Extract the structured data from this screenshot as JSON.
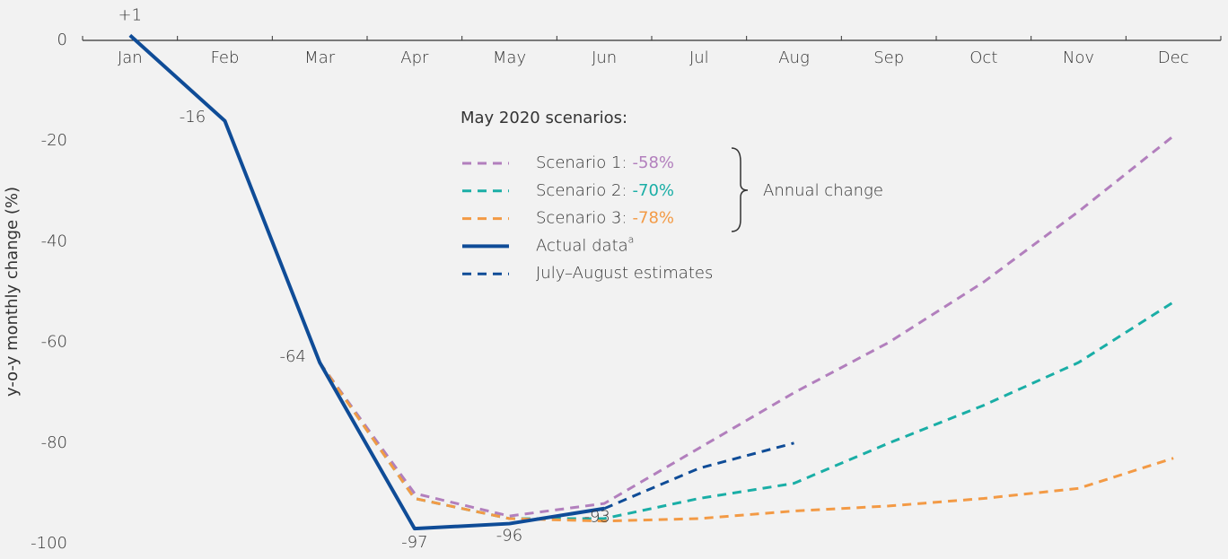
{
  "chart_data": {
    "type": "line",
    "y_label": "y-o-y monthly change (%)",
    "categories": [
      "Jan",
      "Feb",
      "Mar",
      "Apr",
      "May",
      "Jun",
      "Jul",
      "Aug",
      "Sep",
      "Oct",
      "Nov",
      "Dec"
    ],
    "ylim": [
      -100,
      0
    ],
    "yticks": [
      0,
      -20,
      -40,
      -60,
      -80,
      -100
    ],
    "legend_title": "May 2020 scenarios:",
    "annotation": "Annual change",
    "series": [
      {
        "name": "Scenario 1:",
        "annual_change": "-58%",
        "color": "#b27fbd",
        "dashed": true,
        "values": [
          null,
          null,
          -64,
          -90,
          -94.5,
          -92,
          -81,
          -70,
          -60,
          -48,
          -34,
          -19
        ]
      },
      {
        "name": "Scenario 2:",
        "annual_change": "-70%",
        "color": "#1aaea6",
        "dashed": true,
        "values": [
          null,
          null,
          -64,
          -91,
          -95,
          -95,
          -91,
          -88,
          -80,
          -72.5,
          -64,
          -52
        ]
      },
      {
        "name": "Scenario 3:",
        "annual_change": "-78%",
        "color": "#f39a45",
        "dashed": true,
        "values": [
          null,
          null,
          -64,
          -91,
          -95,
          -95.5,
          -95,
          -93.5,
          -92.5,
          -91,
          -89,
          -83
        ]
      },
      {
        "name": "Actual data",
        "footnote": "a",
        "color": "#0f4c97",
        "dashed": false,
        "values": [
          1,
          -16,
          -64,
          -97,
          -96,
          -93,
          null,
          null,
          null,
          null,
          null,
          null
        ],
        "value_labels": [
          "+1",
          "-16",
          "-64",
          "-97",
          "-96",
          "-93",
          null,
          null,
          null,
          null,
          null,
          null
        ]
      },
      {
        "name": "July–August estimates",
        "color": "#0f4c97",
        "dashed": true,
        "values": [
          null,
          null,
          null,
          null,
          null,
          -93,
          -85,
          -80,
          null,
          null,
          null,
          null
        ]
      }
    ],
    "draw_order": [
      0,
      1,
      2,
      4,
      3
    ]
  }
}
